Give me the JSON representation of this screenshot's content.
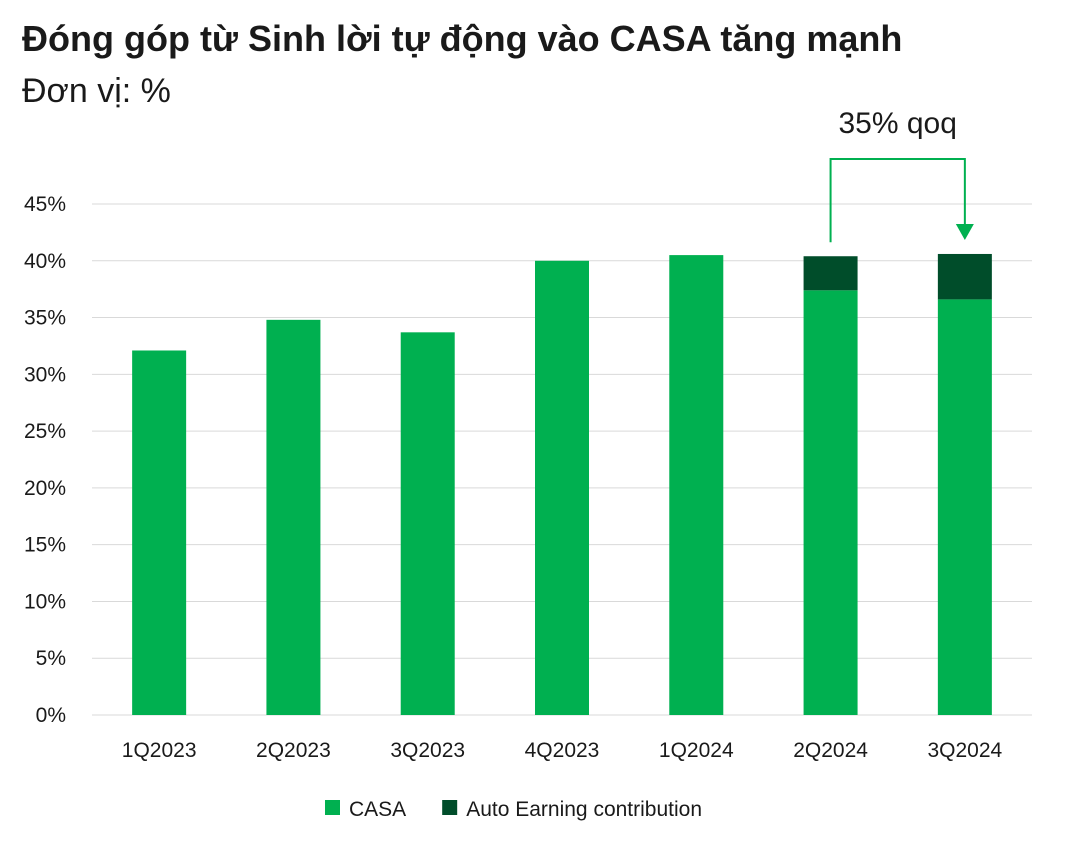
{
  "chart_data": {
    "type": "bar",
    "stacked": true,
    "title": "Đóng góp từ Sinh lời tự động vào CASA tăng mạnh",
    "subtitle": "Đơn vị: %",
    "categories": [
      "1Q2023",
      "2Q2023",
      "3Q2023",
      "4Q2023",
      "1Q2024",
      "2Q2024",
      "3Q2024"
    ],
    "series": [
      {
        "name": "CASA",
        "color": "#00b050",
        "values": [
          32.1,
          34.8,
          33.7,
          40.0,
          40.5,
          37.4,
          36.6
        ]
      },
      {
        "name": "Auto Earning contribution",
        "color": "#004d2a",
        "values": [
          0,
          0,
          0,
          0,
          0,
          3.0,
          4.0
        ]
      }
    ],
    "ylim": [
      0,
      45
    ],
    "yticks": [
      "0%",
      "5%",
      "10%",
      "15%",
      "20%",
      "25%",
      "30%",
      "35%",
      "40%",
      "45%"
    ],
    "ytick_values": [
      0,
      5,
      10,
      15,
      20,
      25,
      30,
      35,
      40,
      45
    ],
    "grid": true,
    "legend_position": "bottom",
    "annotation": {
      "text": "35% qoq",
      "from": "2Q2024",
      "to": "3Q2024",
      "color": "#00b050"
    }
  }
}
